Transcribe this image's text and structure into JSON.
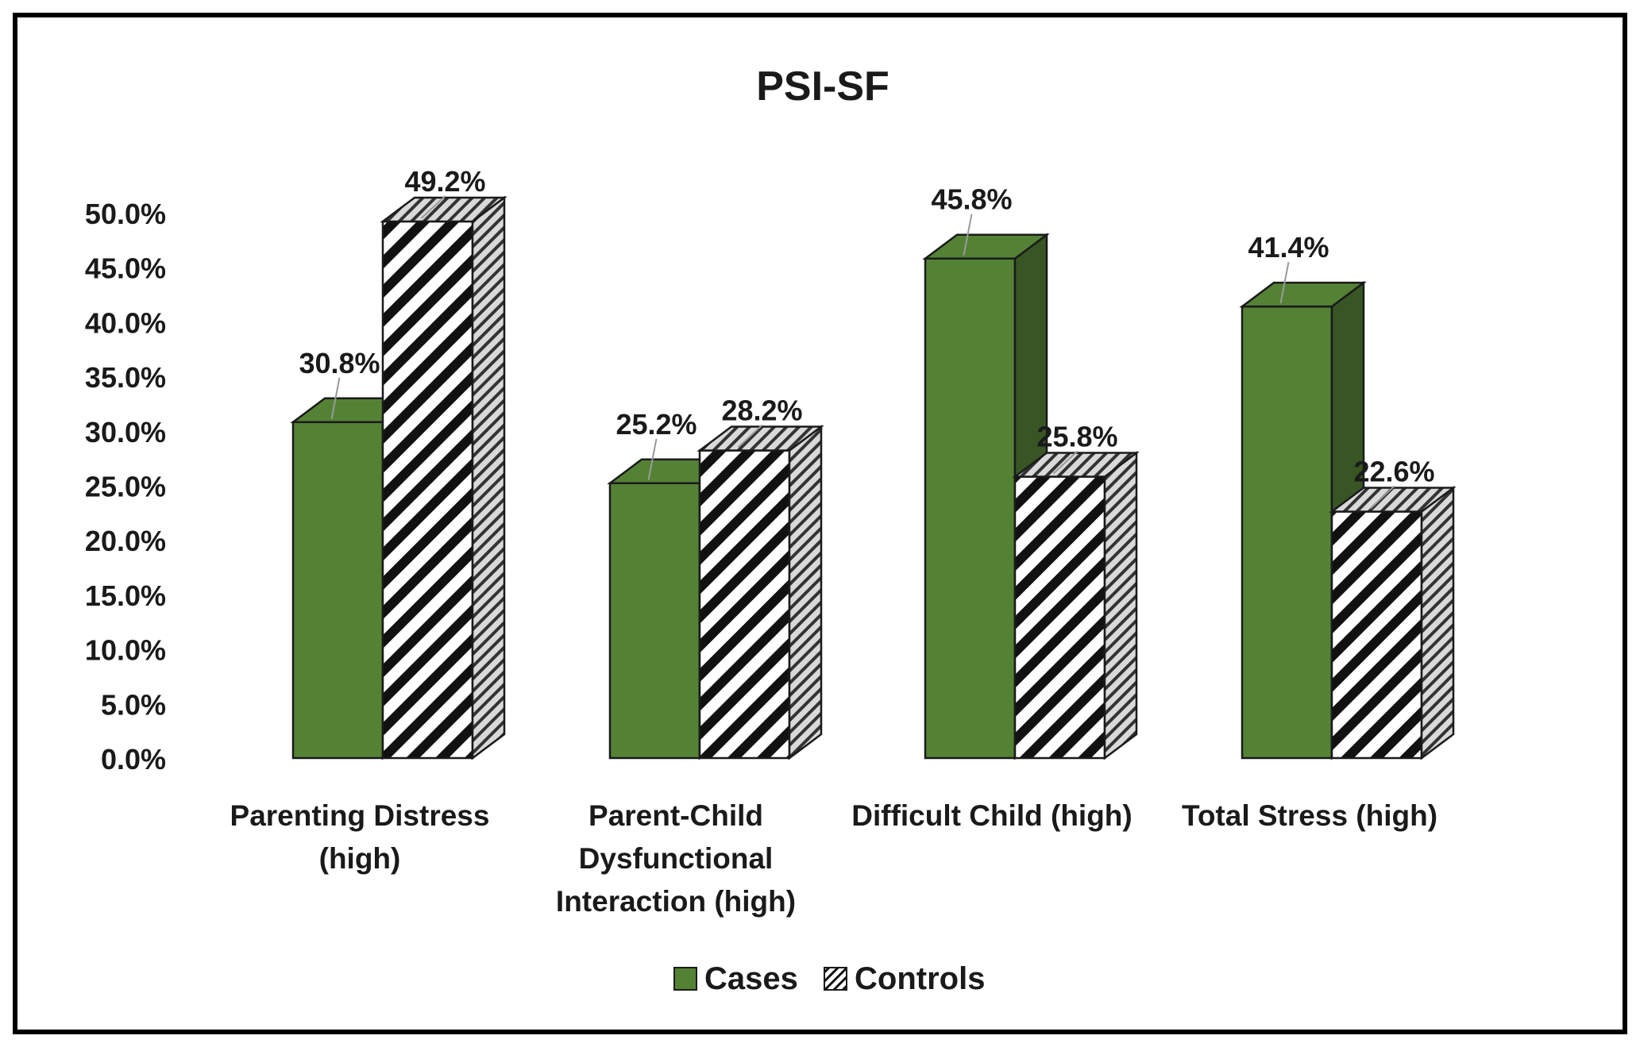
{
  "chart_data": {
    "type": "bar",
    "title": "PSI-SF",
    "xlabel": "",
    "ylabel": "",
    "ylim": [
      0,
      50
    ],
    "yticks": [
      "0.0%",
      "5.0%",
      "10.0%",
      "15.0%",
      "20.0%",
      "25.0%",
      "30.0%",
      "35.0%",
      "40.0%",
      "45.0%",
      "50.0%"
    ],
    "categories": [
      [
        "Parenting Distress",
        "(high)"
      ],
      [
        "Parent-Child",
        "Dysfunctional",
        "Interaction (high)"
      ],
      [
        "Difficult Child (high)"
      ],
      [
        "Total Stress (high)"
      ]
    ],
    "series": [
      {
        "name": "Cases",
        "values": [
          30.8,
          25.2,
          45.8,
          41.4
        ],
        "labels": [
          "30.8%",
          "25.2%",
          "45.8%",
          "41.4%"
        ],
        "color": "#548235",
        "side_color": "#375623"
      },
      {
        "name": "Controls",
        "values": [
          49.2,
          28.2,
          25.8,
          22.6
        ],
        "labels": [
          "49.2%",
          "28.2%",
          "25.8%",
          "22.6%"
        ],
        "color": "#ffffff",
        "pattern": "diagonal-hatch"
      }
    ],
    "legend": {
      "position": "bottom"
    },
    "grid": false
  }
}
